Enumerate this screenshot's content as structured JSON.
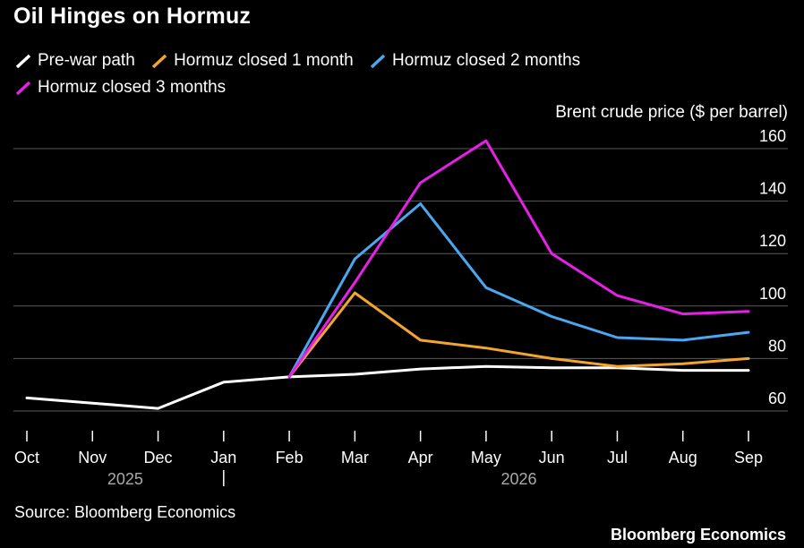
{
  "chart_data": {
    "type": "line",
    "title": "Oil Hinges on Hormuz",
    "ylabel": "Brent crude price ($ per barrel)",
    "xlabel": "",
    "categories": [
      "Oct",
      "Nov",
      "Dec",
      "Jan",
      "Feb",
      "Mar",
      "Apr",
      "May",
      "Jun",
      "Jul",
      "Aug",
      "Sep"
    ],
    "year_labels": [
      {
        "label": "2025",
        "after": "Nov"
      },
      {
        "label": "2026",
        "after": "May"
      }
    ],
    "ylim": [
      55,
      165
    ],
    "yticks": [
      60,
      80,
      100,
      120,
      140,
      160
    ],
    "grid": true,
    "legend_position": "top-left",
    "series": [
      {
        "name": "Pre-war path",
        "color": "#ffffff",
        "values": [
          65,
          63,
          61,
          71,
          73,
          74,
          76,
          77,
          76.5,
          76.5,
          75.5,
          75.5
        ]
      },
      {
        "name": "Hormuz closed 1 month",
        "color": "#f4a52e",
        "values": [
          null,
          null,
          null,
          null,
          73,
          105,
          87,
          84,
          80,
          77,
          78,
          80
        ]
      },
      {
        "name": "Hormuz closed 2 months",
        "color": "#4aa8f0",
        "values": [
          null,
          null,
          null,
          null,
          73,
          118,
          139,
          107,
          96,
          88,
          87,
          90
        ]
      },
      {
        "name": "Hormuz closed 3 months",
        "color": "#e81fe8",
        "values": [
          null,
          null,
          null,
          null,
          73,
          109,
          147,
          163,
          120,
          104,
          97,
          98
        ]
      }
    ]
  },
  "footer": {
    "source": "Source: Bloomberg Economics",
    "brand": "Bloomberg Economics"
  }
}
